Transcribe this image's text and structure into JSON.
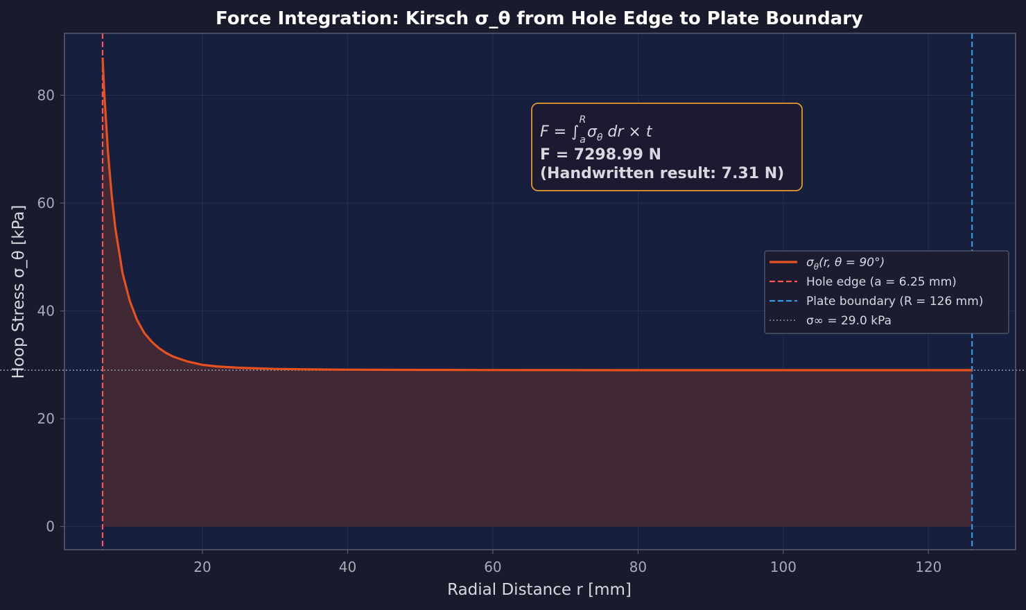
{
  "chart_data": {
    "type": "line",
    "title": "Force Integration: Kirsch σ_θ from Hole Edge to Plate Boundary",
    "xlabel": "Radial Distance r [mm]",
    "ylabel": "Hoop Stress σ_θ [kPa]",
    "xlim": [
      1,
      132
    ],
    "ylim": [
      -4.3,
      91.5
    ],
    "x_ticks": [
      20,
      40,
      60,
      80,
      100,
      120
    ],
    "y_ticks": [
      0,
      20,
      40,
      60,
      80
    ],
    "grid": true,
    "fill_under_curve": true,
    "legend_position": "center-right",
    "series": [
      {
        "name": "σθ(r, θ = 90°)",
        "color": "#e8501e",
        "style": "solid",
        "x": [
          6.25,
          6.5,
          7,
          7.5,
          8,
          9,
          10,
          11,
          12,
          13,
          14,
          15,
          16,
          18,
          20,
          22,
          25,
          30,
          35,
          40,
          50,
          60,
          70,
          80,
          90,
          100,
          110,
          120,
          126
        ],
        "y": [
          87.0,
          80.0,
          69.4,
          61.4,
          55.4,
          47.0,
          41.8,
          38.3,
          35.9,
          34.3,
          33.1,
          32.2,
          31.5,
          30.6,
          30.0,
          29.7,
          29.45,
          29.24,
          29.14,
          29.09,
          29.05,
          29.03,
          29.02,
          29.01,
          29.01,
          29.0,
          29.0,
          29.0,
          29.0
        ]
      }
    ],
    "reference_lines": [
      {
        "label": "Hole edge (a = 6.25 mm)",
        "orientation": "vertical",
        "value": 6.25,
        "color": "#ff5252",
        "style": "dashed"
      },
      {
        "label": "Plate boundary (R = 126 mm)",
        "orientation": "vertical",
        "value": 126,
        "color": "#2e9ae6",
        "style": "dashed"
      },
      {
        "label": "σ∞ = 29.0 kPa",
        "orientation": "horizontal",
        "value": 29.0,
        "color": "#8d92a8",
        "style": "dotted"
      }
    ],
    "annotation": {
      "formula_parts": {
        "lhs": "F = ∫",
        "sup": "R",
        "sub": "a",
        "rest": "σ",
        "rest_sub": "θ",
        "rest_tail": " dr × t"
      },
      "result": "F = 7298.99 N",
      "note": "(Handwritten result: 7.31 N)",
      "border_color": "#e39a2a"
    }
  },
  "colors": {
    "figure_bg": "#191a2c",
    "plot_bg": "#16203e",
    "grid": "#243050",
    "fill": "#402834",
    "frame": "#5a5e70"
  }
}
